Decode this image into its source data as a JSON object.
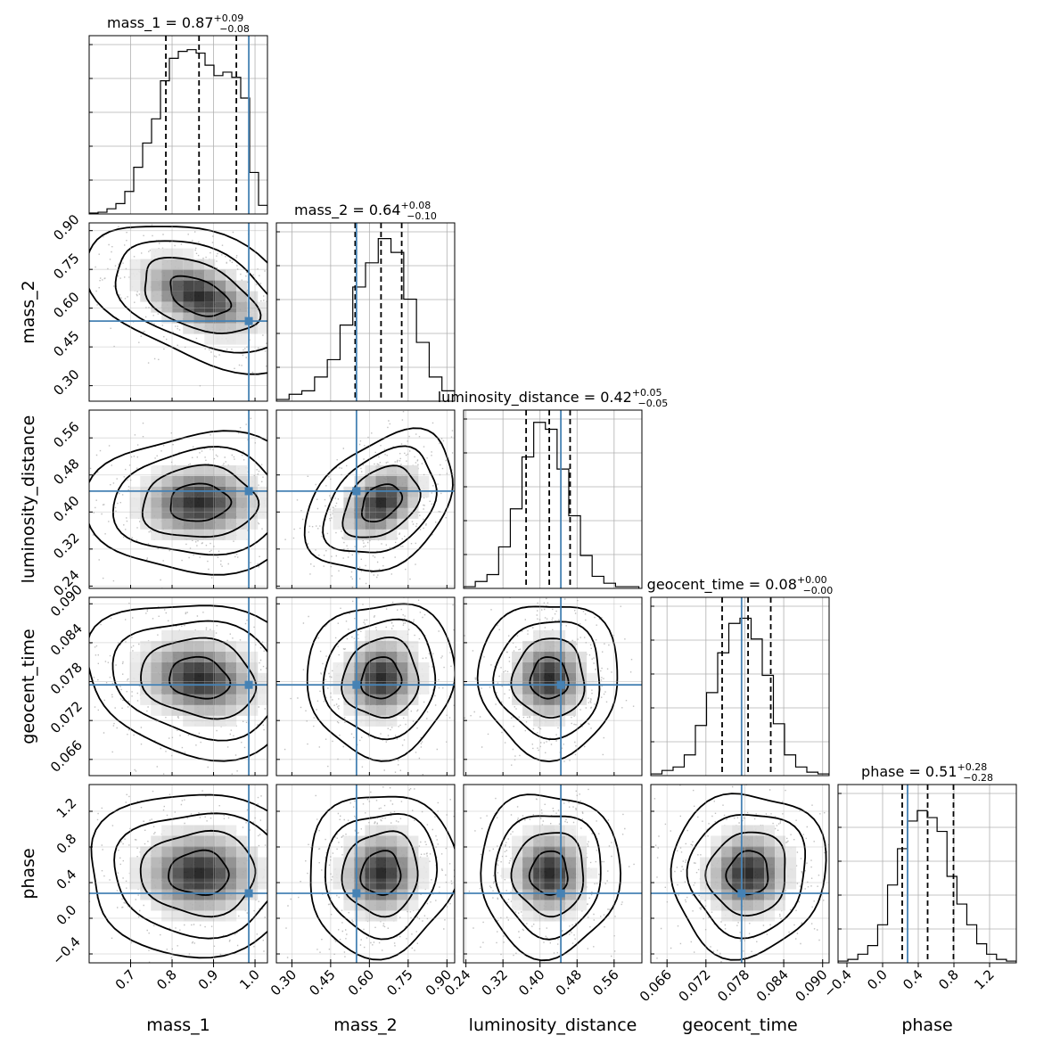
{
  "chart_data": {
    "type": "corner",
    "parameters": [
      {
        "name": "mass_1",
        "label": "mass_1",
        "range": [
          0.6,
          1.03
        ],
        "ticks": [
          0.7,
          0.8,
          0.9,
          1.0
        ],
        "tick_labels": [
          "0.7",
          "0.8",
          "0.9",
          "1.0"
        ],
        "median": 0.87,
        "plus": "+0.09",
        "minus": "−0.08",
        "median_label": "0.87",
        "q16": 0.785,
        "q50": 0.865,
        "q84": 0.955,
        "truth": 0.985
      },
      {
        "name": "mass_2",
        "label": "mass_2",
        "range": [
          0.24,
          0.93
        ],
        "ticks": [
          0.3,
          0.45,
          0.6,
          0.75,
          0.9
        ],
        "tick_labels": [
          "0.30",
          "0.45",
          "0.60",
          "0.75",
          "0.90"
        ],
        "median": 0.64,
        "plus": "+0.08",
        "minus": "−0.10",
        "median_label": "0.64",
        "q16": 0.545,
        "q50": 0.645,
        "q84": 0.725,
        "truth": 0.55
      },
      {
        "name": "luminosity_distance",
        "label": "luminosity_distance",
        "range": [
          0.235,
          0.62
        ],
        "ticks": [
          0.24,
          0.32,
          0.4,
          0.48,
          0.56
        ],
        "tick_labels": [
          "0.24",
          "0.32",
          "0.40",
          "0.48",
          "0.56"
        ],
        "median": 0.42,
        "plus": "+0.05",
        "minus": "−0.05",
        "median_label": "0.42",
        "q16": 0.37,
        "q50": 0.42,
        "q84": 0.465,
        "truth": 0.445
      },
      {
        "name": "geocent_time",
        "label": "geocent_time",
        "range": [
          0.0635,
          0.091
        ],
        "ticks": [
          0.066,
          0.072,
          0.078,
          0.084,
          0.09
        ],
        "tick_labels": [
          "0.066",
          "0.072",
          "0.078",
          "0.084",
          "0.090"
        ],
        "median": 0.08,
        "plus": "+0.00",
        "minus": "−0.00",
        "median_label": "0.08",
        "q16": 0.0745,
        "q50": 0.0785,
        "q84": 0.082,
        "truth": 0.0775
      },
      {
        "name": "phase",
        "label": "phase",
        "range": [
          -0.5,
          1.5
        ],
        "ticks": [
          -0.4,
          0.0,
          0.4,
          0.8,
          1.2
        ],
        "tick_labels": [
          "−0.4",
          "0.0",
          "0.4",
          "0.8",
          "1.2"
        ],
        "median": 0.51,
        "plus": "+0.28",
        "minus": "−0.28",
        "median_label": "0.51",
        "q16": 0.22,
        "q50": 0.505,
        "q84": 0.795,
        "truth": 0.28
      }
    ],
    "histograms": [
      [
        0.005,
        0.01,
        0.03,
        0.06,
        0.13,
        0.27,
        0.41,
        0.55,
        0.77,
        0.9,
        0.94,
        0.95,
        0.93,
        0.86,
        0.8,
        0.82,
        0.79,
        0.67,
        0.24,
        0.05
      ],
      [
        0.01,
        0.04,
        0.06,
        0.14,
        0.24,
        0.44,
        0.66,
        0.8,
        0.94,
        0.86,
        0.59,
        0.34,
        0.14,
        0.06
      ],
      [
        0.01,
        0.04,
        0.08,
        0.24,
        0.46,
        0.76,
        0.96,
        0.92,
        0.69,
        0.42,
        0.19,
        0.07,
        0.03,
        0.01,
        0.01
      ],
      [
        0.01,
        0.03,
        0.05,
        0.12,
        0.29,
        0.48,
        0.71,
        0.88,
        0.91,
        0.79,
        0.58,
        0.3,
        0.12,
        0.05,
        0.02,
        0.01
      ],
      [
        0.01,
        0.02,
        0.05,
        0.1,
        0.22,
        0.45,
        0.66,
        0.82,
        0.88,
        0.84,
        0.76,
        0.5,
        0.34,
        0.22,
        0.11,
        0.05,
        0.02,
        0.01
      ]
    ],
    "correlations": {
      "0-1": -0.45,
      "0-2": 0.05,
      "1-2": 0.35,
      "0-3": -0.15,
      "1-3": 0.05,
      "2-3": 0.0,
      "0-4": 0.0,
      "1-4": 0.05,
      "2-4": 0.0,
      "3-4": 0.05
    },
    "truth_color": "#4682b4",
    "grid": true
  }
}
